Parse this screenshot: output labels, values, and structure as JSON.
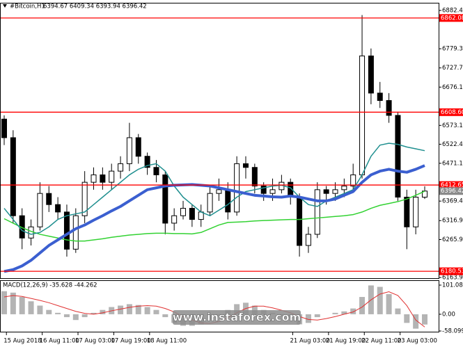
{
  "chart_data": {
    "type": "candlestick",
    "title": "#Bitcoin,H1",
    "ohlc_text": "6394.67 6409.34 6393.94 6396.42",
    "x": [
      "2018-08-15T18:00",
      "2018-08-15T22:00",
      "2018-08-16T02:00",
      "2018-08-16T06:00",
      "2018-08-16T10:00",
      "2018-08-16T14:00",
      "2018-08-16T18:00",
      "2018-08-16T22:00",
      "2018-08-17T02:00",
      "2018-08-17T06:00",
      "2018-08-17T10:00",
      "2018-08-17T14:00",
      "2018-08-17T18:00",
      "2018-08-17T22:00",
      "2018-08-18T02:00",
      "2018-08-18T06:00",
      "2018-08-18T10:00",
      "2018-08-18T14:00",
      "2018-08-18T18:00",
      "2018-08-18T22:00",
      "2018-08-19T02:00",
      "2018-08-19T06:00",
      "2018-08-19T10:00",
      "2018-08-19T14:00",
      "2018-08-19T18:00",
      "2018-08-19T22:00",
      "2018-08-20T02:00",
      "2018-08-20T06:00",
      "2018-08-20T10:00",
      "2018-08-20T14:00",
      "2018-08-20T18:00",
      "2018-08-20T22:00",
      "2018-08-21T02:00",
      "2018-08-21T06:00",
      "2018-08-21T10:00",
      "2018-08-21T14:00",
      "2018-08-21T18:00",
      "2018-08-21T22:00",
      "2018-08-22T02:00",
      "2018-08-22T06:00",
      "2018-08-22T10:00",
      "2018-08-22T14:00",
      "2018-08-22T18:00",
      "2018-08-22T22:00",
      "2018-08-23T02:00",
      "2018-08-23T06:00",
      "2018-08-23T10:00",
      "2018-08-23T14:00"
    ],
    "open": [
      6590,
      6540,
      6330,
      6270,
      6300,
      6390,
      6360,
      6340,
      6240,
      6330,
      6420,
      6440,
      6420,
      6450,
      6470,
      6540,
      6490,
      6460,
      6440,
      6310,
      6330,
      6350,
      6320,
      6340,
      6390,
      6400,
      6340,
      6470,
      6460,
      6410,
      6390,
      6400,
      6420,
      6380,
      6250,
      6280,
      6400,
      6390,
      6400,
      6410,
      6440,
      6760,
      6660,
      6640,
      6600,
      6380,
      6300,
      6380
    ],
    "high": [
      6600,
      6560,
      6350,
      6320,
      6420,
      6410,
      6380,
      6360,
      6350,
      6450,
      6460,
      6460,
      6470,
      6490,
      6580,
      6550,
      6500,
      6480,
      6450,
      6350,
      6370,
      6360,
      6360,
      6410,
      6430,
      6420,
      6490,
      6490,
      6470,
      6420,
      6430,
      6440,
      6430,
      6390,
      6300,
      6420,
      6410,
      6420,
      6430,
      6470,
      6870,
      6780,
      6690,
      6660,
      6610,
      6400,
      6400,
      6409.34
    ],
    "low": [
      6520,
      6310,
      6240,
      6250,
      6290,
      6340,
      6320,
      6220,
      6230,
      6310,
      6400,
      6400,
      6400,
      6430,
      6450,
      6470,
      6440,
      6420,
      6280,
      6290,
      6320,
      6300,
      6300,
      6330,
      6370,
      6320,
      6330,
      6430,
      6390,
      6370,
      6370,
      6390,
      6360,
      6220,
      6230,
      6270,
      6360,
      6370,
      6380,
      6400,
      6430,
      6630,
      6620,
      6580,
      6370,
      6240,
      6280,
      6375
    ],
    "close": [
      6540,
      6330,
      6270,
      6300,
      6390,
      6360,
      6340,
      6240,
      6330,
      6420,
      6440,
      6420,
      6450,
      6470,
      6540,
      6490,
      6460,
      6440,
      6310,
      6330,
      6350,
      6320,
      6340,
      6390,
      6400,
      6340,
      6470,
      6460,
      6410,
      6390,
      6400,
      6420,
      6380,
      6250,
      6280,
      6400,
      6390,
      6400,
      6410,
      6440,
      6760,
      6660,
      6640,
      6600,
      6380,
      6300,
      6380,
      6396.42
    ],
    "candle_color": "#000000",
    "ylim": [
      6163.9,
      6882.4
    ],
    "yticks": [
      {
        "value": 6882.4,
        "label": "6882.40"
      },
      {
        "value": 6779.3,
        "label": "6779.30"
      },
      {
        "value": 6727.7,
        "label": "6727.70"
      },
      {
        "value": 6676.1,
        "label": "6676.10"
      },
      {
        "value": 6573.1,
        "label": "6573.10"
      },
      {
        "value": 6522.4,
        "label": "6522.40"
      },
      {
        "value": 6471.1,
        "label": "6471.10"
      },
      {
        "value": 6369.4,
        "label": "6369.40"
      },
      {
        "value": 6316.9,
        "label": "6316.90"
      },
      {
        "value": 6265.9,
        "label": "6265.90"
      },
      {
        "value": 6163.9,
        "label": "6163.90"
      }
    ],
    "xticks": [
      {
        "value": "2018-08-15T19:00",
        "label": "15 Aug 2018"
      },
      {
        "value": "2018-08-16T11:00",
        "label": "16 Aug 11:00"
      },
      {
        "value": "2018-08-17T03:00",
        "label": "17 Aug 03:00"
      },
      {
        "value": "2018-08-17T19:00",
        "label": "17 Aug 19:00"
      },
      {
        "value": "2018-08-18T11:00",
        "label": "18 Aug 11:00"
      },
      {
        "value": "2018-08-21T03:00",
        "label": "21 Aug 03:00"
      },
      {
        "value": "2018-08-21T19:00",
        "label": "21 Aug 19:00"
      },
      {
        "value": "2018-08-22T11:00",
        "label": "22 Aug 11:00"
      },
      {
        "value": "2018-08-23T03:00",
        "label": "23 Aug 03:00"
      }
    ],
    "levels": [
      6862.08,
      {
        "value": 6608.6,
        "label": "6608.60"
      },
      6412.65,
      6180.53
    ],
    "level_color": "#ff0000",
    "last_price": 6396.42,
    "moving_averages": [
      {
        "color": "#32d232",
        "values": [
          6322,
          6310,
          6298,
          6288,
          6280,
          6275,
          6270,
          6265,
          6262,
          6262,
          6265,
          6268,
          6272,
          6275,
          6278,
          6280,
          6282,
          6283,
          6283,
          6282,
          6282,
          6281,
          6285,
          6295,
          6305,
          6312,
          6313,
          6314,
          6316,
          6317,
          6318,
          6319,
          6320,
          6320,
          6322,
          6324,
          6326,
          6328,
          6330,
          6333,
          6340,
          6350,
          6358,
          6363,
          6368,
          6375,
          6385,
          6396
        ]
      },
      {
        "color": "#1f8f8f",
        "values": [
          6350,
          6320,
          6290,
          6280,
          6285,
          6300,
          6320,
          6330,
          6335,
          6340,
          6360,
          6380,
          6400,
          6420,
          6440,
          6455,
          6465,
          6470,
          6450,
          6410,
          6380,
          6360,
          6340,
          6330,
          6345,
          6360,
          6380,
          6395,
          6400,
          6405,
          6410,
          6412,
          6405,
          6380,
          6360,
          6355,
          6370,
          6380,
          6390,
          6400,
          6440,
          6490,
          6520,
          6525,
          6522,
          6515,
          6510,
          6505
        ]
      },
      {
        "color": "#3b5fd0",
        "values": [
          6180,
          6185,
          6195,
          6210,
          6230,
          6250,
          6265,
          6280,
          6295,
          6305,
          6318,
          6330,
          6343,
          6355,
          6370,
          6385,
          6400,
          6405,
          6410,
          6412,
          6413,
          6414,
          6412,
          6410,
          6405,
          6400,
          6395,
          6390,
          6385,
          6383,
          6381,
          6380,
          6383,
          6380,
          6375,
          6370,
          6370,
          6375,
          6385,
          6395,
          6420,
          6440,
          6450,
          6455,
          6450,
          6447,
          6455,
          6465
        ]
      }
    ],
    "macd": {
      "title": "MACD(12,26,9) -35.628 -44.262",
      "ylim": [
        -58.099,
        101.088
      ],
      "yticks": [
        101.088,
        {
          "value": 0,
          "label": "0.00"
        },
        -58.099
      ],
      "histogram": [
        80,
        75,
        60,
        45,
        30,
        15,
        5,
        -10,
        -20,
        -10,
        5,
        15,
        25,
        30,
        35,
        32,
        25,
        15,
        -10,
        -30,
        -40,
        -40,
        -35,
        -20,
        -5,
        15,
        35,
        40,
        30,
        15,
        5,
        -5,
        -15,
        -35,
        -30,
        -10,
        0,
        5,
        10,
        20,
        60,
        100,
        95,
        70,
        20,
        -30,
        -50,
        -35.628
      ],
      "signal": [
        60,
        65,
        62,
        55,
        48,
        40,
        30,
        20,
        10,
        3,
        0,
        5,
        12,
        18,
        24,
        28,
        30,
        28,
        20,
        8,
        -8,
        -20,
        -30,
        -32,
        -25,
        -12,
        5,
        20,
        28,
        28,
        22,
        14,
        5,
        -8,
        -18,
        -20,
        -15,
        -8,
        0,
        8,
        25,
        50,
        70,
        78,
        65,
        30,
        -20,
        -44.262
      ],
      "histogram_color": "#b4b4b4",
      "signal_color": "#e03030"
    }
  },
  "watermark": "www.instaforex.com"
}
